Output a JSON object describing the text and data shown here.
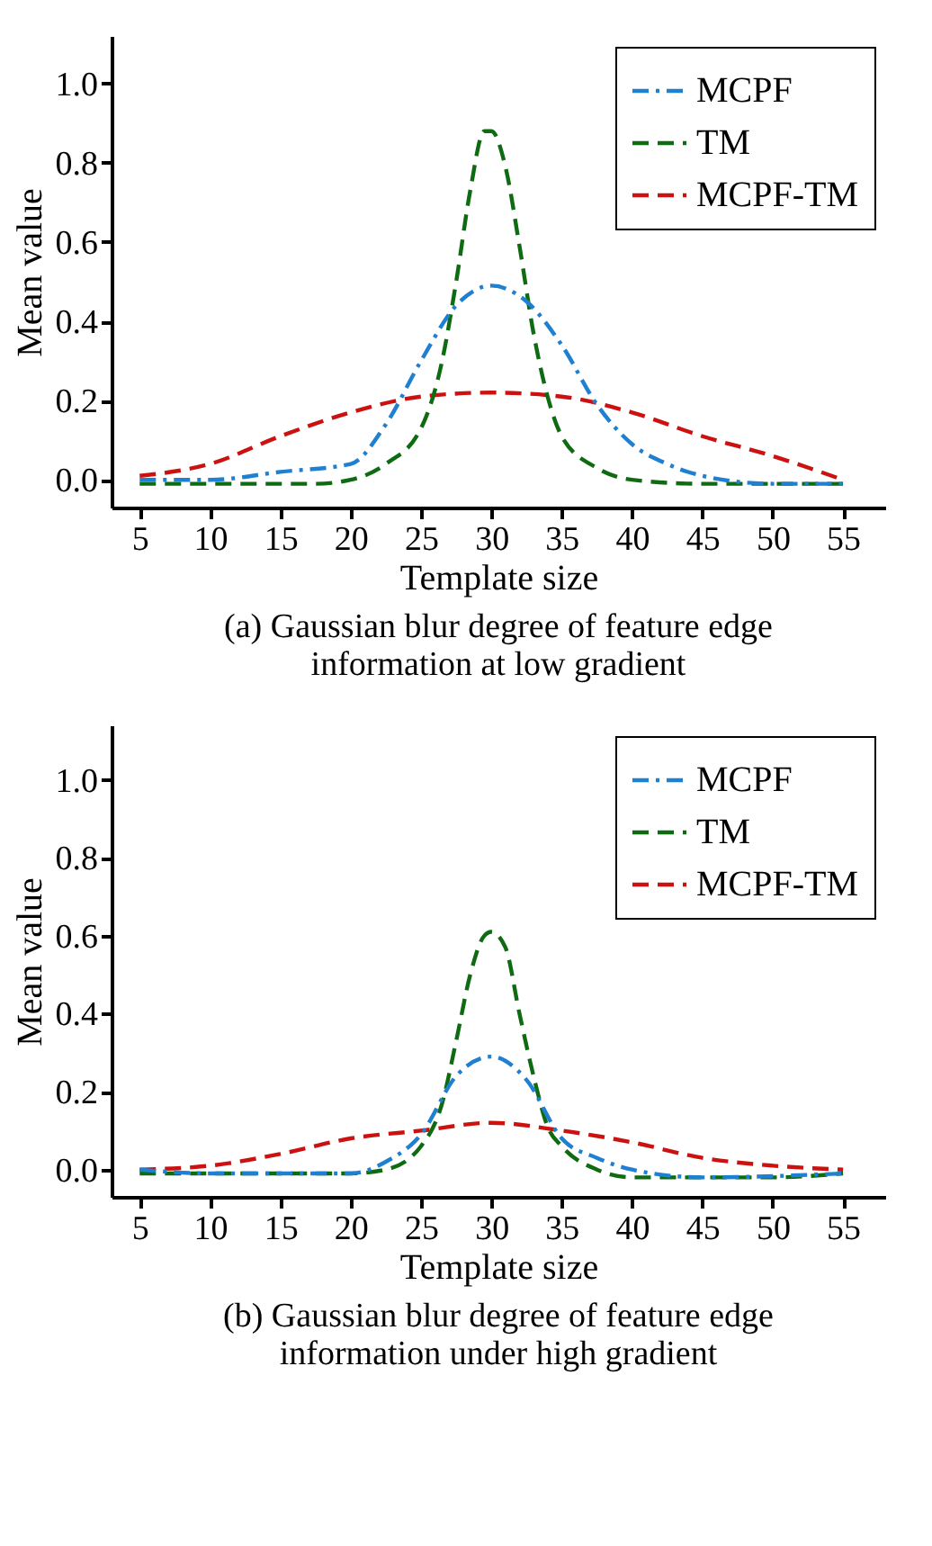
{
  "chart_data": [
    {
      "type": "line",
      "title": "(a) Gaussian blur degree of feature edge information at low gradient",
      "xlabel": "Template size",
      "ylabel": "Mean value",
      "xlim": [
        3,
        58
      ],
      "ylim": [
        -0.07,
        1.12
      ],
      "xticks": [
        5,
        10,
        15,
        20,
        25,
        30,
        35,
        40,
        45,
        50,
        55
      ],
      "yticks": [
        {
          "value": 0,
          "label": "0.0"
        },
        {
          "value": 0.2,
          "label": "0.2"
        },
        {
          "value": 0.4,
          "label": "0.4"
        },
        {
          "value": 0.6,
          "label": "0.6"
        },
        {
          "value": 0.8,
          "label": "0.8"
        },
        {
          "value": 1,
          "label": "1.0"
        }
      ],
      "legend": "top right",
      "grid": false,
      "series": [
        {
          "name": "MCPF",
          "color": "#1f7fd0",
          "line_style": "dashdot",
          "x": [
            5,
            10,
            15,
            20,
            22.5,
            25,
            27.5,
            30,
            32.5,
            35,
            37.5,
            40,
            42.5,
            45,
            50,
            55
          ],
          "values": [
            0,
            0,
            0.02,
            0.04,
            0.14,
            0.3,
            0.44,
            0.49,
            0.45,
            0.34,
            0.19,
            0.09,
            0.04,
            0.01,
            -0.01,
            -0.01
          ]
        },
        {
          "name": "TM",
          "color": "#0f6b12",
          "line_style": "dashed",
          "x": [
            5,
            10,
            15,
            17.5,
            20,
            22.5,
            25,
            26.5,
            27.5,
            28.5,
            29.5,
            30,
            31,
            32,
            33,
            34,
            35,
            37.5,
            40,
            45,
            50,
            55
          ],
          "values": [
            -0.01,
            -0.01,
            -0.01,
            -0.01,
            0,
            0.04,
            0.13,
            0.3,
            0.5,
            0.73,
            0.88,
            0.88,
            0.79,
            0.59,
            0.37,
            0.21,
            0.11,
            0.03,
            0,
            -0.01,
            -0.01,
            -0.01
          ]
        },
        {
          "name": "MCPF-TM",
          "color": "#cc1111",
          "line_style": "dashed",
          "x": [
            5,
            10,
            15,
            20,
            25,
            30,
            35,
            40,
            45,
            50,
            55
          ],
          "values": [
            0.01,
            0.04,
            0.11,
            0.17,
            0.21,
            0.22,
            0.21,
            0.17,
            0.11,
            0.06,
            0
          ]
        }
      ]
    },
    {
      "type": "line",
      "title": "(b) Gaussian blur degree of feature edge information under high gradient",
      "xlabel": "Template size",
      "ylabel": "Mean value",
      "xlim": [
        3,
        58
      ],
      "ylim": [
        -0.07,
        1.14
      ],
      "xticks": [
        5,
        10,
        15,
        20,
        25,
        30,
        35,
        40,
        45,
        50,
        55
      ],
      "yticks": [
        {
          "value": 0,
          "label": "0.0"
        },
        {
          "value": 0.2,
          "label": "0.2"
        },
        {
          "value": 0.4,
          "label": "0.4"
        },
        {
          "value": 0.6,
          "label": "0.6"
        },
        {
          "value": 0.8,
          "label": "0.8"
        },
        {
          "value": 1,
          "label": "1.0"
        }
      ],
      "legend": "top right",
      "grid": false,
      "series": [
        {
          "name": "MCPF",
          "color": "#1f7fd0",
          "line_style": "dashdot",
          "x": [
            5,
            10,
            20,
            22.5,
            25,
            27.5,
            30,
            32.5,
            35,
            37.5,
            40,
            45,
            55
          ],
          "values": [
            0,
            -0.01,
            -0.01,
            0.02,
            0.09,
            0.24,
            0.29,
            0.23,
            0.08,
            0.03,
            0,
            -0.02,
            -0.01
          ]
        },
        {
          "name": "TM",
          "color": "#0f6b12",
          "line_style": "dashed",
          "x": [
            5,
            10,
            15,
            20,
            22.5,
            25,
            26.5,
            27.5,
            28.5,
            29.5,
            30,
            31,
            32,
            33,
            34,
            35,
            37.5,
            40,
            45,
            50,
            55
          ],
          "values": [
            -0.01,
            -0.01,
            -0.01,
            -0.01,
            0,
            0.06,
            0.17,
            0.33,
            0.5,
            0.6,
            0.61,
            0.57,
            0.4,
            0.24,
            0.11,
            0.06,
            0,
            -0.02,
            -0.02,
            -0.02,
            -0.01
          ]
        },
        {
          "name": "MCPF-TM",
          "color": "#cc1111",
          "line_style": "dashed",
          "x": [
            5,
            10,
            15,
            20,
            25,
            30,
            35,
            40,
            45,
            50,
            55
          ],
          "values": [
            0,
            0.01,
            0.04,
            0.08,
            0.1,
            0.12,
            0.1,
            0.07,
            0.03,
            0.01,
            0
          ]
        }
      ]
    }
  ]
}
